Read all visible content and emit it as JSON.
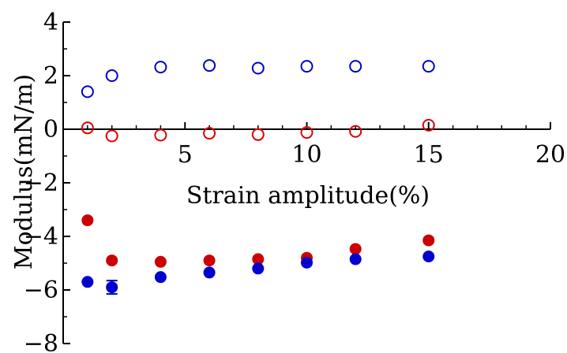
{
  "chart_data": {
    "type": "scatter",
    "title": "",
    "xlabel": "Strain amplitude(%)",
    "ylabel": "Modulus(mN/m)",
    "xlim": [
      0,
      20
    ],
    "ylim": [
      -8,
      4
    ],
    "x_ticks": [
      5,
      10,
      15,
      20
    ],
    "x_tick_labels": [
      "5",
      "10",
      "15",
      "20"
    ],
    "y_ticks": [
      4,
      2,
      0,
      -2,
      -4,
      -6,
      -8
    ],
    "y_tick_labels": [
      "4",
      "2",
      "0",
      "−2",
      "−4",
      "−6",
      "−8"
    ],
    "grid": false,
    "legend": "none",
    "series": [
      {
        "marker": "open-circle",
        "color": "#0000cc",
        "x": [
          1,
          2,
          4,
          6,
          8,
          10,
          12,
          15
        ],
        "y": [
          1.4,
          2.0,
          2.32,
          2.38,
          2.28,
          2.35,
          2.35,
          2.35
        ]
      },
      {
        "marker": "open-circle",
        "color": "#dd0000",
        "x": [
          1,
          2,
          4,
          6,
          8,
          10,
          12,
          15
        ],
        "y": [
          0.05,
          -0.25,
          -0.22,
          -0.15,
          -0.2,
          -0.12,
          -0.08,
          0.15
        ]
      },
      {
        "marker": "filled-circle",
        "color": "#cc0000",
        "x": [
          1,
          2,
          4,
          6,
          8,
          10,
          12,
          15
        ],
        "y": [
          -3.4,
          -4.9,
          -4.95,
          -4.9,
          -4.85,
          -4.8,
          -4.47,
          -4.15
        ]
      },
      {
        "marker": "filled-circle",
        "color": "#0000cc",
        "x": [
          1,
          2,
          4,
          6,
          8,
          10,
          12,
          15
        ],
        "y": [
          -5.7,
          -5.9,
          -5.52,
          -5.35,
          -5.2,
          -4.98,
          -4.85,
          -4.75
        ],
        "error": [
          0,
          0.25,
          0,
          0,
          0,
          0,
          0,
          0
        ]
      }
    ]
  }
}
